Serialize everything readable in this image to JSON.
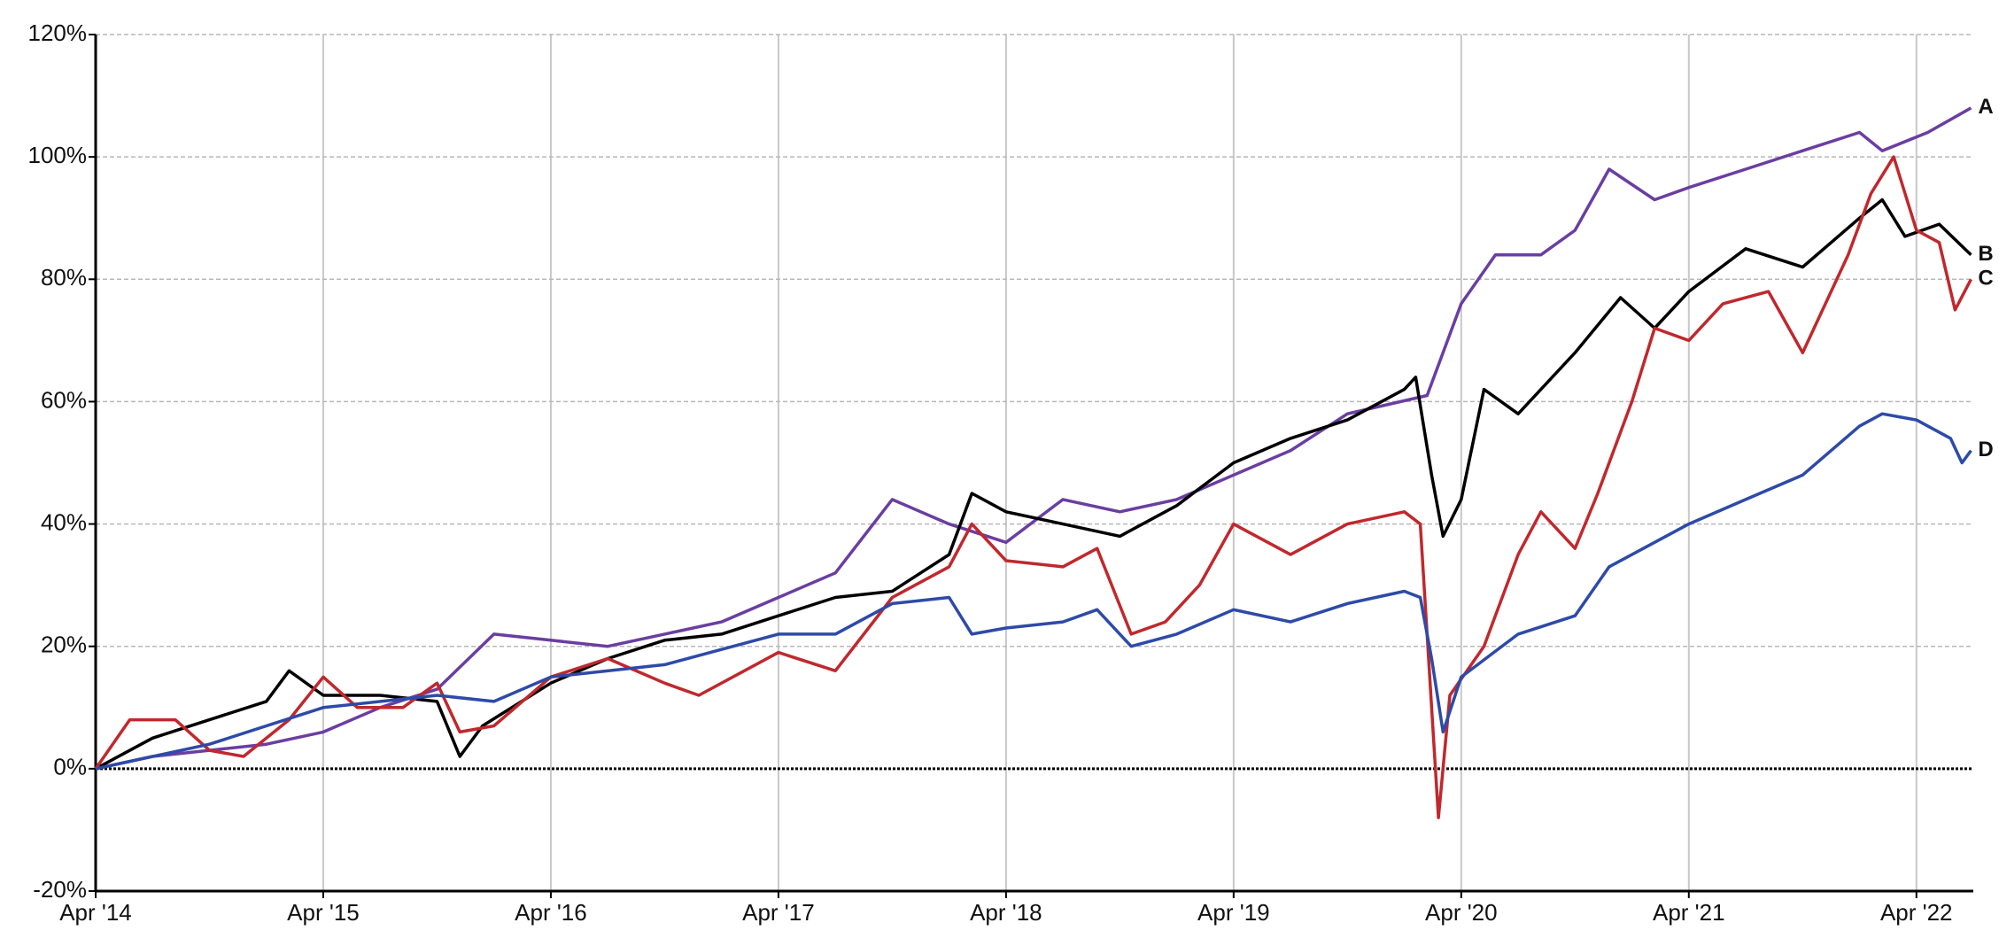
{
  "chart_data": {
    "type": "line",
    "xlim": [
      2014.25,
      2022.5
    ],
    "xticks": [
      {
        "value": 2014.25,
        "label": "Apr '14"
      },
      {
        "value": 2015.25,
        "label": "Apr '15"
      },
      {
        "value": 2016.25,
        "label": "Apr '16"
      },
      {
        "value": 2017.25,
        "label": "Apr '17"
      },
      {
        "value": 2018.25,
        "label": "Apr '18"
      },
      {
        "value": 2019.25,
        "label": "Apr '19"
      },
      {
        "value": 2020.25,
        "label": "Apr '20"
      },
      {
        "value": 2021.25,
        "label": "Apr '21"
      },
      {
        "value": 2022.25,
        "label": "Apr '22"
      }
    ],
    "ylim": [
      -20,
      120
    ],
    "yticks": [
      {
        "value": -20,
        "label": "-20%"
      },
      {
        "value": 0,
        "label": "0%"
      },
      {
        "value": 20,
        "label": "20%"
      },
      {
        "value": 40,
        "label": "40%"
      },
      {
        "value": 60,
        "label": "60%"
      },
      {
        "value": 80,
        "label": "80%"
      },
      {
        "value": 100,
        "label": "100%"
      },
      {
        "value": 120,
        "label": "120%"
      }
    ],
    "grid": true,
    "series": [
      {
        "name": "A",
        "color": "#6a3ea1",
        "x": [
          2014.25,
          2014.5,
          2014.75,
          2015,
          2015.25,
          2015.5,
          2015.75,
          2016,
          2016.25,
          2016.5,
          2016.75,
          2017,
          2017.25,
          2017.5,
          2017.75,
          2018,
          2018.25,
          2018.5,
          2018.75,
          2019,
          2019.25,
          2019.5,
          2019.75,
          2020.1,
          2020.25,
          2020.4,
          2020.6,
          2020.75,
          2020.9,
          2021.1,
          2021.25,
          2021.5,
          2021.75,
          2022,
          2022.1,
          2022.3,
          2022.49
        ],
        "values": [
          0,
          2,
          3,
          4,
          6,
          10,
          13,
          22,
          21,
          20,
          22,
          24,
          28,
          32,
          44,
          40,
          37,
          44,
          42,
          44,
          48,
          52,
          58,
          61,
          76,
          84,
          84,
          88,
          98,
          93,
          95,
          98,
          101,
          104,
          101,
          104,
          108
        ]
      },
      {
        "name": "B",
        "color": "#000000",
        "x": [
          2014.25,
          2014.5,
          2014.75,
          2015,
          2015.1,
          2015.25,
          2015.5,
          2015.75,
          2015.85,
          2015.95,
          2016.25,
          2016.5,
          2016.75,
          2017,
          2017.25,
          2017.5,
          2017.75,
          2018,
          2018.1,
          2018.25,
          2018.5,
          2018.75,
          2019,
          2019.25,
          2019.5,
          2019.75,
          2020,
          2020.05,
          2020.12,
          2020.17,
          2020.25,
          2020.35,
          2020.5,
          2020.6,
          2020.75,
          2020.95,
          2021.1,
          2021.25,
          2021.5,
          2021.75,
          2022,
          2022.1,
          2022.2,
          2022.35,
          2022.49
        ],
        "values": [
          0,
          5,
          8,
          11,
          16,
          12,
          12,
          11,
          2,
          7,
          14,
          18,
          21,
          22,
          25,
          28,
          29,
          35,
          45,
          42,
          40,
          38,
          43,
          50,
          54,
          57,
          62,
          64,
          48,
          38,
          44,
          62,
          58,
          62,
          68,
          77,
          72,
          78,
          85,
          82,
          90,
          93,
          87,
          89,
          84
        ]
      },
      {
        "name": "C",
        "color": "#c0282d",
        "x": [
          2014.25,
          2014.4,
          2014.6,
          2014.75,
          2014.9,
          2015.1,
          2015.25,
          2015.4,
          2015.6,
          2015.75,
          2015.85,
          2016,
          2016.25,
          2016.5,
          2016.75,
          2016.9,
          2017.25,
          2017.5,
          2017.75,
          2018,
          2018.1,
          2018.25,
          2018.5,
          2018.65,
          2018.8,
          2018.95,
          2019.1,
          2019.25,
          2019.5,
          2019.75,
          2020,
          2020.07,
          2020.12,
          2020.15,
          2020.2,
          2020.35,
          2020.5,
          2020.6,
          2020.75,
          2020.85,
          2021,
          2021.1,
          2021.25,
          2021.4,
          2021.6,
          2021.75,
          2021.95,
          2022.05,
          2022.15,
          2022.25,
          2022.35,
          2022.42,
          2022.49
        ],
        "values": [
          0,
          8,
          8,
          3,
          2,
          8,
          15,
          10,
          10,
          14,
          6,
          7,
          15,
          18,
          14,
          12,
          19,
          16,
          28,
          33,
          40,
          34,
          33,
          36,
          22,
          24,
          30,
          40,
          35,
          40,
          42,
          40,
          10,
          -8,
          12,
          20,
          35,
          42,
          36,
          45,
          60,
          72,
          70,
          76,
          78,
          68,
          84,
          94,
          100,
          88,
          86,
          75,
          80
        ]
      },
      {
        "name": "D",
        "color": "#2e4aa8",
        "x": [
          2014.25,
          2014.75,
          2015.25,
          2015.75,
          2016,
          2016.25,
          2016.75,
          2017.25,
          2017.5,
          2017.75,
          2018,
          2018.1,
          2018.25,
          2018.5,
          2018.65,
          2018.8,
          2019,
          2019.25,
          2019.5,
          2019.75,
          2020,
          2020.07,
          2020.12,
          2020.17,
          2020.25,
          2020.5,
          2020.75,
          2020.9,
          2021.25,
          2021.5,
          2021.75,
          2022,
          2022.1,
          2022.25,
          2022.4,
          2022.45,
          2022.49
        ],
        "values": [
          0,
          4,
          10,
          12,
          11,
          15,
          17,
          22,
          22,
          27,
          28,
          22,
          23,
          24,
          26,
          20,
          22,
          26,
          24,
          27,
          29,
          28,
          18,
          6,
          15,
          22,
          25,
          33,
          40,
          44,
          48,
          56,
          58,
          57,
          54,
          50,
          52
        ]
      }
    ]
  }
}
